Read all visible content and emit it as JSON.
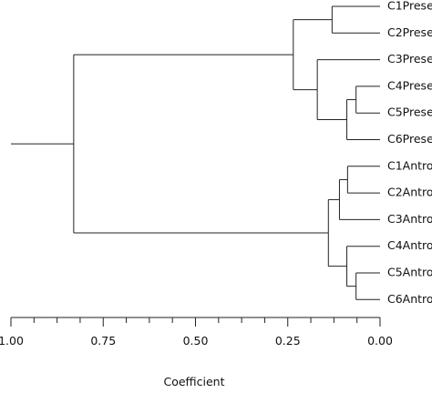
{
  "chart_data": {
    "type": "dendrogram",
    "orientation": "horizontal",
    "axis_reversed": true,
    "xlabel": "Coefficient",
    "xlim": [
      1.0,
      0.0
    ],
    "major_ticks": [
      {
        "value": 1.0,
        "label": "1.00"
      },
      {
        "value": 0.75,
        "label": "0.75"
      },
      {
        "value": 0.5,
        "label": "0.50"
      },
      {
        "value": 0.25,
        "label": "0.25"
      },
      {
        "value": 0.0,
        "label": "0.00"
      }
    ],
    "minor_tick_step": 0.0625,
    "root_stem_start": 1.0,
    "leaves": [
      "C1Prese",
      "C2Prese",
      "C3Prese",
      "C4Prese",
      "C5Prese",
      "C6Prese",
      "C1Antro",
      "C2Antro",
      "C3Antro",
      "C4Antro",
      "C5Antro",
      "C6Antro"
    ],
    "merges": [
      {
        "id": "n1",
        "left": 0,
        "right": 1,
        "height": 0.13
      },
      {
        "id": "n2",
        "left": 3,
        "right": 4,
        "height": 0.065
      },
      {
        "id": "n3",
        "left": "n2",
        "right": 5,
        "height": 0.09
      },
      {
        "id": "n4",
        "left": 2,
        "right": "n3",
        "height": 0.17
      },
      {
        "id": "n5",
        "left": "n1",
        "right": "n4",
        "height": 0.235
      },
      {
        "id": "n6",
        "left": 6,
        "right": 7,
        "height": 0.088
      },
      {
        "id": "n7",
        "left": "n6",
        "right": 8,
        "height": 0.11
      },
      {
        "id": "n8",
        "left": 10,
        "right": 11,
        "height": 0.065
      },
      {
        "id": "n9",
        "left": 9,
        "right": "n8",
        "height": 0.09
      },
      {
        "id": "n10",
        "left": "n7",
        "right": "n9",
        "height": 0.14
      },
      {
        "id": "n11",
        "left": "n5",
        "right": "n10",
        "height": 0.83
      }
    ]
  }
}
